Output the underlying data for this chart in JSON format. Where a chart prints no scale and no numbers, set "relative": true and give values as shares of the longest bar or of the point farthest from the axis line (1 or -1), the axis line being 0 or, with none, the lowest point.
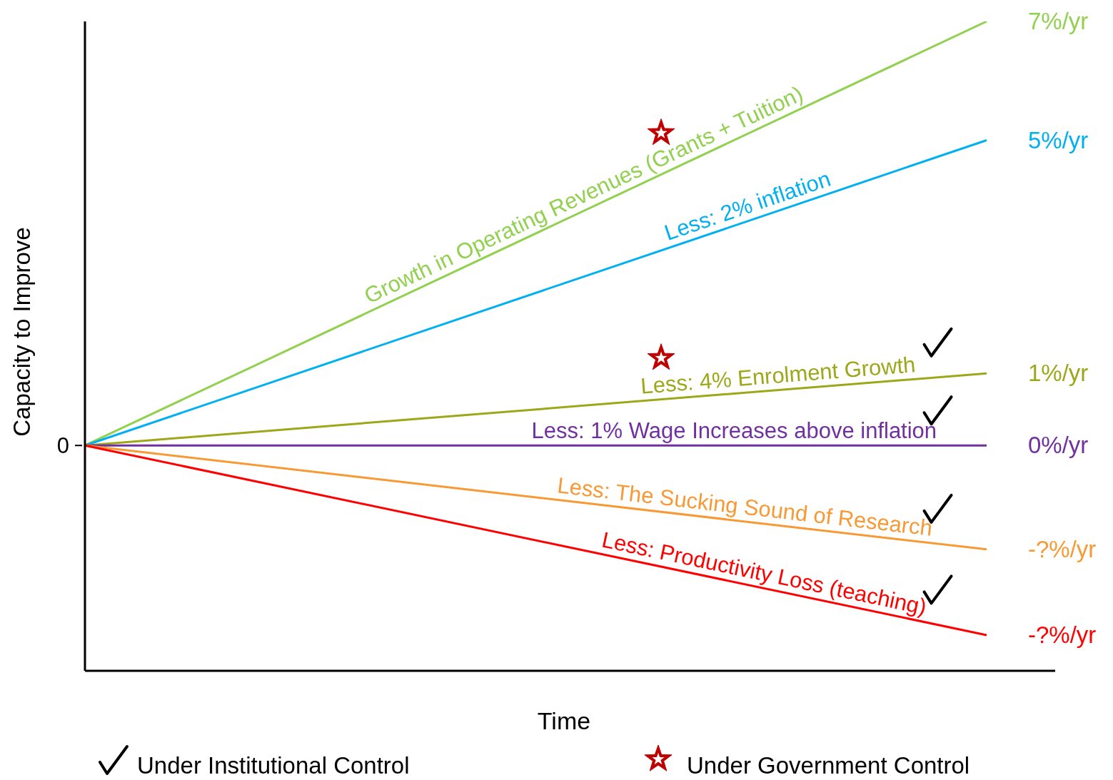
{
  "chart_data": {
    "type": "line",
    "relative": true,
    "xlabel": "Time",
    "ylabel": "Capacity to Improve",
    "categories": [
      null,
      null
    ],
    "series": [
      {
        "name": "Growth in Operating Revenues (Grants + Tuition)",
        "color": "#92d050",
        "values": [
          0.347,
          1
        ]
      },
      {
        "name": "Less: 2% inflation",
        "color": "#00b0f0",
        "values": [
          0.347,
          0.817
        ]
      },
      {
        "name": "Less: 4% Enrolment Growth",
        "color": "#9ca81a",
        "values": [
          0.347,
          0.458
        ]
      },
      {
        "name": "Less: 1% Wage Increases above inflation",
        "color": "#7030a0",
        "values": [
          0.347,
          0.347
        ]
      },
      {
        "name": "Less: The Sucking Sound of Research",
        "color": "#f79a35",
        "values": [
          0.347,
          0.187
        ]
      },
      {
        "name": "Less: Productivity Loss (teaching)",
        "color": "#ff0000",
        "values": [
          0.347,
          0.055
        ]
      }
    ],
    "annotations": [
      "0",
      "7%/yr",
      "5%/yr",
      "1%/yr",
      "0%/yr",
      "-?%/yr",
      "-?%/yr",
      "Under Institutional Control",
      "Under Government Control"
    ],
    "marker": "none",
    "line_style": "solid"
  }
}
